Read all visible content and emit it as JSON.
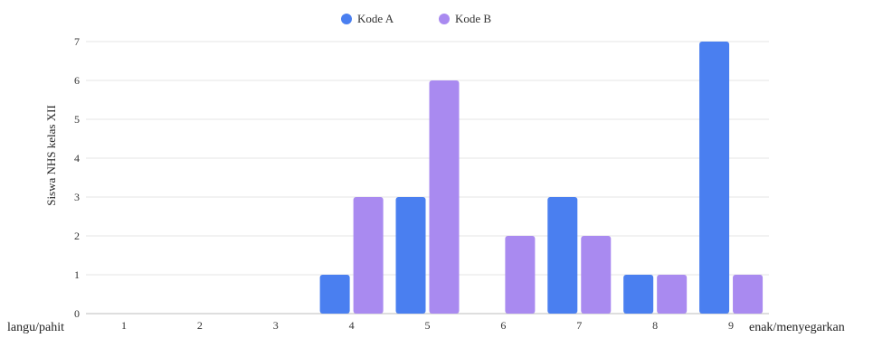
{
  "chart_data": {
    "type": "bar",
    "categories": [
      "1",
      "2",
      "3",
      "4",
      "5",
      "6",
      "7",
      "8",
      "9"
    ],
    "series": [
      {
        "name": "Kode A",
        "color": "#4a7ff0",
        "values": [
          0,
          0,
          0,
          1,
          3,
          0,
          3,
          1,
          7
        ]
      },
      {
        "name": "Kode B",
        "color": "#a98af0",
        "values": [
          0,
          0,
          0,
          3,
          6,
          2,
          2,
          1,
          1
        ]
      }
    ],
    "ylabel": "Siswa NHS kelas XII",
    "ylim": [
      0,
      7
    ],
    "yticks": [
      "0",
      "1",
      "2",
      "3",
      "4",
      "5",
      "6",
      "7"
    ],
    "x_start_label": "langu/pahit",
    "x_end_label": "enak/menyegarkan",
    "grid": true,
    "legend_position": "top-center"
  }
}
